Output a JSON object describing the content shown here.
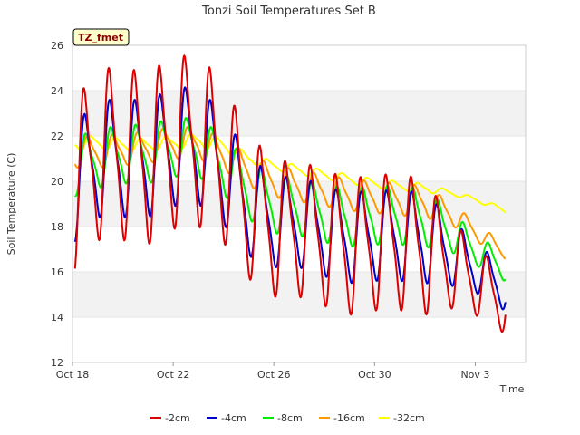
{
  "chart_data": {
    "type": "line",
    "title": "Tonzi Soil Temperatures Set B",
    "xlabel": "Time",
    "ylabel": "Soil Temperature (C)",
    "badge": "TZ_fmet",
    "ylim": [
      12,
      26
    ],
    "y_ticks": [
      12,
      14,
      16,
      18,
      20,
      22,
      24,
      26
    ],
    "x_ticks": [
      {
        "day": 0,
        "label": "Oct 18"
      },
      {
        "day": 4,
        "label": "Oct 22"
      },
      {
        "day": 8,
        "label": "Oct 26"
      },
      {
        "day": 12,
        "label": "Oct 30"
      },
      {
        "day": 16,
        "label": "Nov 3"
      }
    ],
    "xlim_days": [
      0,
      18
    ],
    "grid": "horizontal bands",
    "legend_position": "bottom",
    "series": [
      {
        "name": "-2cm",
        "color": "#dd0000",
        "mean": [
          19.6,
          21.2,
          21.2,
          21.0,
          21.7,
          21.8,
          20.8,
          18.9,
          17.9,
          17.9,
          17.5,
          17.1,
          17.3,
          17.3,
          17.1,
          16.4,
          15.6,
          14.8,
          14.3
        ],
        "amp": [
          3.8,
          3.8,
          3.8,
          3.8,
          3.8,
          3.8,
          3.5,
          3.2,
          3.0,
          3.0,
          3.0,
          3.0,
          3.0,
          3.0,
          3.0,
          2.0,
          1.5,
          1.4,
          1.6
        ]
      },
      {
        "name": "-4cm",
        "color": "#0000cc",
        "mean": [
          19.8,
          21.0,
          21.0,
          21.0,
          21.5,
          21.6,
          20.5,
          18.9,
          18.2,
          18.2,
          17.8,
          17.5,
          17.6,
          17.6,
          17.5,
          16.9,
          16.2,
          15.4,
          15.0
        ],
        "amp": [
          2.6,
          2.6,
          2.6,
          2.6,
          2.6,
          2.6,
          2.4,
          2.2,
          2.0,
          2.0,
          2.0,
          2.0,
          2.0,
          2.0,
          2.0,
          1.5,
          1.1,
          1.0,
          1.2
        ]
      },
      {
        "name": "-8cm",
        "color": "#00ee00",
        "mean": [
          20.6,
          21.0,
          21.2,
          21.2,
          21.5,
          21.5,
          20.7,
          19.6,
          19.0,
          18.9,
          18.6,
          18.4,
          18.5,
          18.5,
          18.4,
          17.8,
          17.0,
          16.3,
          15.8
        ],
        "amp": [
          1.3,
          1.3,
          1.3,
          1.3,
          1.3,
          1.3,
          1.3,
          1.3,
          1.3,
          1.3,
          1.3,
          1.3,
          1.3,
          1.3,
          1.3,
          0.9,
          0.7,
          0.6,
          0.7
        ]
      },
      {
        "name": "-16cm",
        "color": "#ff9900",
        "mean": [
          21.3,
          21.3,
          21.4,
          21.5,
          21.7,
          21.7,
          21.2,
          20.5,
          20.0,
          19.8,
          19.6,
          19.4,
          19.3,
          19.2,
          19.1,
          18.6,
          17.8,
          17.0,
          16.7
        ],
        "amp": [
          0.7,
          0.7,
          0.7,
          0.7,
          0.7,
          0.7,
          0.7,
          0.7,
          0.7,
          0.7,
          0.7,
          0.7,
          0.7,
          0.7,
          0.7,
          0.5,
          0.4,
          0.35,
          0.4
        ]
      },
      {
        "name": "-32cm",
        "color": "#ffff00",
        "mean": [
          21.7,
          21.7,
          21.6,
          21.6,
          21.7,
          21.8,
          21.6,
          21.0,
          20.7,
          20.5,
          20.3,
          20.1,
          19.9,
          19.8,
          19.7,
          19.5,
          19.2,
          18.8,
          18.2
        ],
        "amp": [
          0.3,
          0.3,
          0.3,
          0.3,
          0.3,
          0.3,
          0.3,
          0.2,
          0.2,
          0.2,
          0.2,
          0.2,
          0.2,
          0.2,
          0.2,
          0.1,
          0.1,
          0.1,
          0.05
        ]
      }
    ]
  }
}
